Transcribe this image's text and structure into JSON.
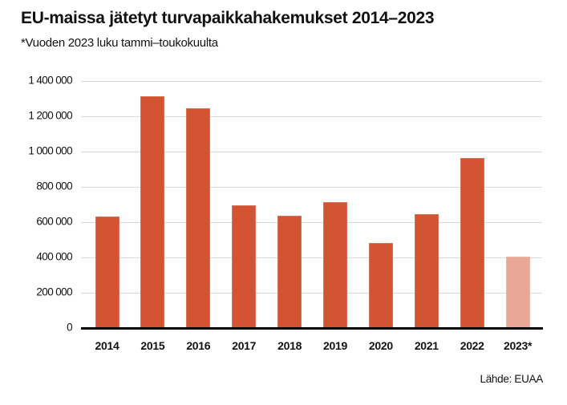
{
  "title": "EU-maissa jätetyt turvapaikkahakemukset 2014–2023",
  "subtitle": "*Vuoden 2023 luku tammi–toukokuulta",
  "source": "Lähde: EUAA",
  "colors": {
    "bar": "#d25433",
    "bar_partial": "#e9a895",
    "grid": "#d9d9d9",
    "axis": "#000000"
  },
  "y_ticks": [
    {
      "value": 0,
      "label": "0"
    },
    {
      "value": 200000,
      "label": "200 000"
    },
    {
      "value": 400000,
      "label": "400 000"
    },
    {
      "value": 600000,
      "label": "600 000"
    },
    {
      "value": 800000,
      "label": "800 000"
    },
    {
      "value": 1000000,
      "label": "1 000 000"
    },
    {
      "value": 1200000,
      "label": "1 200 000"
    },
    {
      "value": 1400000,
      "label": "1 400 000"
    }
  ],
  "chart_data": {
    "type": "bar",
    "title": "EU-maissa jätetyt turvapaikkahakemukset 2014–2023",
    "subtitle": "*Vuoden 2023 luku tammi–toukokuulta",
    "xlabel": "",
    "ylabel": "",
    "categories": [
      "2014",
      "2015",
      "2016",
      "2017",
      "2018",
      "2019",
      "2020",
      "2021",
      "2022",
      "2023*"
    ],
    "values": [
      630000,
      1314000,
      1247000,
      694000,
      636000,
      712000,
      484000,
      647000,
      963000,
      404000
    ],
    "highlight": {
      "2023*": "partial year (Jan–May), lighter color"
    },
    "ylim": [
      0,
      1400000
    ],
    "yticks": [
      0,
      200000,
      400000,
      600000,
      800000,
      1000000,
      1200000,
      1400000
    ],
    "grid": true,
    "legend": null,
    "source": "Lähde: EUAA"
  }
}
